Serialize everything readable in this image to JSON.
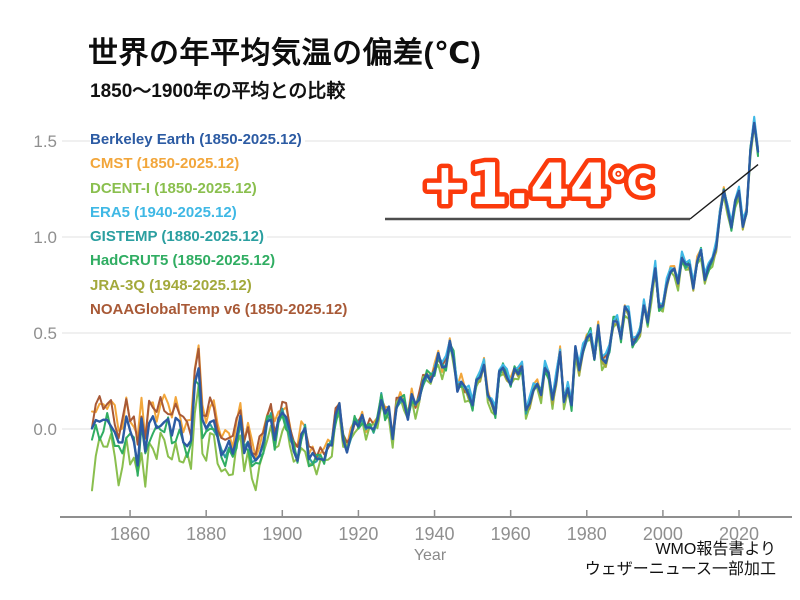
{
  "header": {
    "title": "世界の年平均気温の偏差(℃)",
    "subtitle": "1850〜1900年の平均との比較"
  },
  "annotation": {
    "value": "+1.44",
    "unit": "℃",
    "outline_color": "#fb3a0c",
    "fill_color": "#ffffff",
    "points_to_year": 2025
  },
  "credit": {
    "line1": "WMO報告書より",
    "line2": "ウェザーニュース一部加工"
  },
  "chart_data": {
    "type": "line",
    "title": "世界の年平均気温の偏差(℃)",
    "subtitle": "1850〜1900年の平均との比較",
    "xlabel": "Year",
    "ylabel": "",
    "x_range": [
      1850,
      2025
    ],
    "y_axis_range": [
      -0.46,
      1.66
    ],
    "x_ticks": [
      1860,
      1880,
      1900,
      1920,
      1940,
      1960,
      1980,
      2000,
      2020
    ],
    "y_ticks": [
      "1.5",
      "1.0",
      "0.5",
      "0.0"
    ],
    "y_tick_values": [
      1.5,
      1.0,
      0.5,
      0.0
    ],
    "grid": true,
    "legend_position": "top-left",
    "years_start": 1850,
    "base_anomaly": [
      -0.02,
      0.05,
      0.04,
      0.03,
      0.06,
      0.04,
      -0.03,
      -0.08,
      -0.06,
      0.05,
      -0.02,
      -0.04,
      -0.18,
      0.04,
      -0.11,
      0.03,
      0.04,
      0.01,
      0.04,
      0.03,
      0.05,
      -0.02,
      0.04,
      0.02,
      -0.05,
      -0.08,
      -0.07,
      0.25,
      0.32,
      0.02,
      0.0,
      0.05,
      0.04,
      -0.04,
      -0.12,
      -0.12,
      -0.08,
      -0.12,
      -0.04,
      0.06,
      -0.11,
      -0.06,
      -0.15,
      -0.17,
      -0.13,
      -0.08,
      0.04,
      0.07,
      -0.06,
      0.04,
      0.09,
      0.06,
      -0.02,
      -0.1,
      -0.15,
      -0.04,
      0.0,
      -0.15,
      -0.14,
      -0.16,
      -0.14,
      -0.16,
      -0.09,
      -0.08,
      0.07,
      0.12,
      -0.05,
      -0.11,
      -0.04,
      0.04,
      0.02,
      0.06,
      0.0,
      0.02,
      0.0,
      0.04,
      0.16,
      0.08,
      0.1,
      -0.05,
      0.12,
      0.16,
      0.14,
      0.06,
      0.17,
      0.12,
      0.16,
      0.25,
      0.28,
      0.26,
      0.3,
      0.38,
      0.32,
      0.33,
      0.45,
      0.37,
      0.21,
      0.24,
      0.21,
      0.18,
      0.12,
      0.25,
      0.28,
      0.34,
      0.17,
      0.14,
      0.08,
      0.29,
      0.32,
      0.28,
      0.23,
      0.31,
      0.29,
      0.32,
      0.09,
      0.14,
      0.21,
      0.23,
      0.18,
      0.32,
      0.28,
      0.15,
      0.26,
      0.4,
      0.14,
      0.22,
      0.12,
      0.42,
      0.31,
      0.41,
      0.47,
      0.5,
      0.37,
      0.53,
      0.36,
      0.35,
      0.42,
      0.56,
      0.57,
      0.47,
      0.63,
      0.61,
      0.44,
      0.47,
      0.51,
      0.65,
      0.55,
      0.71,
      0.84,
      0.63,
      0.64,
      0.76,
      0.82,
      0.83,
      0.76,
      0.89,
      0.85,
      0.86,
      0.74,
      0.87,
      0.93,
      0.78,
      0.84,
      0.88,
      0.95,
      1.12,
      1.24,
      1.15,
      1.05,
      1.18,
      1.24,
      1.06,
      1.13,
      1.45,
      1.6,
      1.44
    ],
    "series": [
      {
        "name": "Berkeley Earth",
        "range": "1850-2025.12",
        "start_year": 1850,
        "color": "#2c5ba3",
        "offset_early": 0.0,
        "offset_late": 0.0,
        "jitter": 0.015,
        "phase": 0.3,
        "width": 2.4
      },
      {
        "name": "CMST",
        "range": "1850-2025.12",
        "start_year": 1850,
        "color": "#f2a63b",
        "offset_early": 0.09,
        "offset_late": 0.01,
        "jitter": 0.035,
        "phase": 1.3,
        "width": 2
      },
      {
        "name": "DCENT-I",
        "range": "1850-2025.12",
        "start_year": 1850,
        "color": "#8abf4e",
        "offset_early": -0.13,
        "offset_late": -0.02,
        "jitter": 0.045,
        "phase": 2.1,
        "width": 2,
        "overrides": {
          "1850": -0.32,
          "1851": -0.14
        }
      },
      {
        "name": "ERA5",
        "range": "1940-2025.12",
        "start_year": 1940,
        "color": "#3fb8e5",
        "offset_early": 0.02,
        "offset_late": 0.02,
        "jitter": 0.03,
        "phase": 3.0,
        "width": 2
      },
      {
        "name": "GISTEMP",
        "range": "1880-2025.12",
        "start_year": 1880,
        "color": "#2b9fa0",
        "offset_early": -0.02,
        "offset_late": 0.0,
        "jitter": 0.025,
        "phase": 4.2,
        "width": 2
      },
      {
        "name": "HadCRUT5",
        "range": "1850-2025.12",
        "start_year": 1850,
        "color": "#30ad62",
        "offset_early": -0.04,
        "offset_late": 0.0,
        "jitter": 0.035,
        "phase": 5.0,
        "width": 2
      },
      {
        "name": "JRA-3Q",
        "range": "1948-2025.12",
        "start_year": 1948,
        "color": "#a3a93c",
        "offset_early": 0.0,
        "offset_late": -0.01,
        "jitter": 0.03,
        "phase": 0.8,
        "width": 2
      },
      {
        "name": "NOAAGlobalTemp v6",
        "range": "1850-2025.12",
        "start_year": 1850,
        "color": "#a85936",
        "offset_early": 0.08,
        "offset_late": 0.01,
        "jitter": 0.03,
        "phase": 2.7,
        "width": 2
      }
    ],
    "draw_order": [
      1,
      7,
      2,
      6,
      4,
      5,
      3,
      0
    ],
    "final_value_label": "+1.44℃",
    "peak_value_2024": 1.6
  }
}
